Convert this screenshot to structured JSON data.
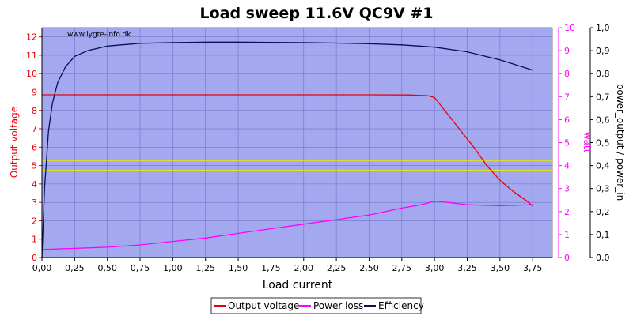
{
  "chart_data": {
    "type": "line",
    "title": "Load sweep 11.6V QC9V #1",
    "watermark": "www.lygte-info.dk",
    "xlabel": "Load current",
    "xlim": [
      0,
      3.9
    ],
    "x_ticks": [
      "0,00",
      "0,25",
      "0,50",
      "0,75",
      "1,00",
      "1,25",
      "1,50",
      "1,75",
      "2,00",
      "2,25",
      "2,50",
      "2,75",
      "3,00",
      "3,25",
      "3,50",
      "3,75"
    ],
    "y_left": {
      "label": "Output voltage",
      "ylim": [
        0,
        12.5
      ],
      "ticks": [
        "0",
        "1",
        "2",
        "3",
        "4",
        "5",
        "6",
        "7",
        "8",
        "9",
        "10",
        "11",
        "12"
      ],
      "color": "#e8000b"
    },
    "y_right1": {
      "label": "watt",
      "ylim": [
        0,
        10
      ],
      "ticks": [
        "0",
        "1",
        "2",
        "3",
        "4",
        "5",
        "6",
        "7",
        "8",
        "9",
        "10"
      ],
      "color": "#ff00ff"
    },
    "y_right2": {
      "label": "power_output / power_in",
      "ylim": [
        0,
        1
      ],
      "ticks": [
        "0,0",
        "0,1",
        "0,2",
        "0,3",
        "0,4",
        "0,5",
        "0,6",
        "0,7",
        "0,8",
        "0,9",
        "1,0"
      ],
      "color": "#000000"
    },
    "reference_lines": [
      {
        "axis": "left",
        "value": 5.25,
        "color": "#e8e800"
      },
      {
        "axis": "left",
        "value": 4.75,
        "color": "#e8e800"
      }
    ],
    "series": [
      {
        "name": "Output voltage",
        "axis": "left",
        "color": "#e8000b",
        "x": [
          0.0,
          0.5,
          1.0,
          1.5,
          2.0,
          2.5,
          2.8,
          2.95,
          3.0,
          3.05,
          3.1,
          3.2,
          3.3,
          3.4,
          3.5,
          3.6,
          3.7,
          3.75
        ],
        "y": [
          8.85,
          8.85,
          8.85,
          8.85,
          8.85,
          8.85,
          8.84,
          8.8,
          8.7,
          8.25,
          7.8,
          6.9,
          6.0,
          5.0,
          4.2,
          3.6,
          3.1,
          2.8
        ]
      },
      {
        "name": "Power loss",
        "axis": "right1",
        "color": "#ff00ff",
        "x": [
          0.0,
          0.25,
          0.5,
          0.75,
          1.0,
          1.25,
          1.5,
          1.75,
          2.0,
          2.25,
          2.5,
          2.75,
          2.9,
          3.0,
          3.1,
          3.25,
          3.5,
          3.75
        ],
        "y": [
          0.35,
          0.4,
          0.45,
          0.55,
          0.7,
          0.85,
          1.05,
          1.25,
          1.45,
          1.65,
          1.85,
          2.15,
          2.3,
          2.45,
          2.4,
          2.3,
          2.25,
          2.3
        ]
      },
      {
        "name": "Efficiency",
        "axis": "right2",
        "color": "#0a0f5a",
        "x": [
          0.0,
          0.02,
          0.05,
          0.08,
          0.12,
          0.18,
          0.25,
          0.35,
          0.5,
          0.75,
          1.0,
          1.25,
          1.5,
          1.75,
          2.0,
          2.25,
          2.5,
          2.75,
          3.0,
          3.25,
          3.5,
          3.75
        ],
        "y": [
          0.0,
          0.3,
          0.55,
          0.67,
          0.76,
          0.83,
          0.875,
          0.9,
          0.92,
          0.932,
          0.935,
          0.937,
          0.937,
          0.936,
          0.935,
          0.933,
          0.93,
          0.925,
          0.915,
          0.895,
          0.86,
          0.815
        ]
      }
    ],
    "legend": {
      "position": "bottom-center",
      "entries": [
        "Output voltage",
        "Power loss",
        "Efficiency"
      ]
    },
    "grid": true,
    "plot_background": "#a4a8ef"
  }
}
